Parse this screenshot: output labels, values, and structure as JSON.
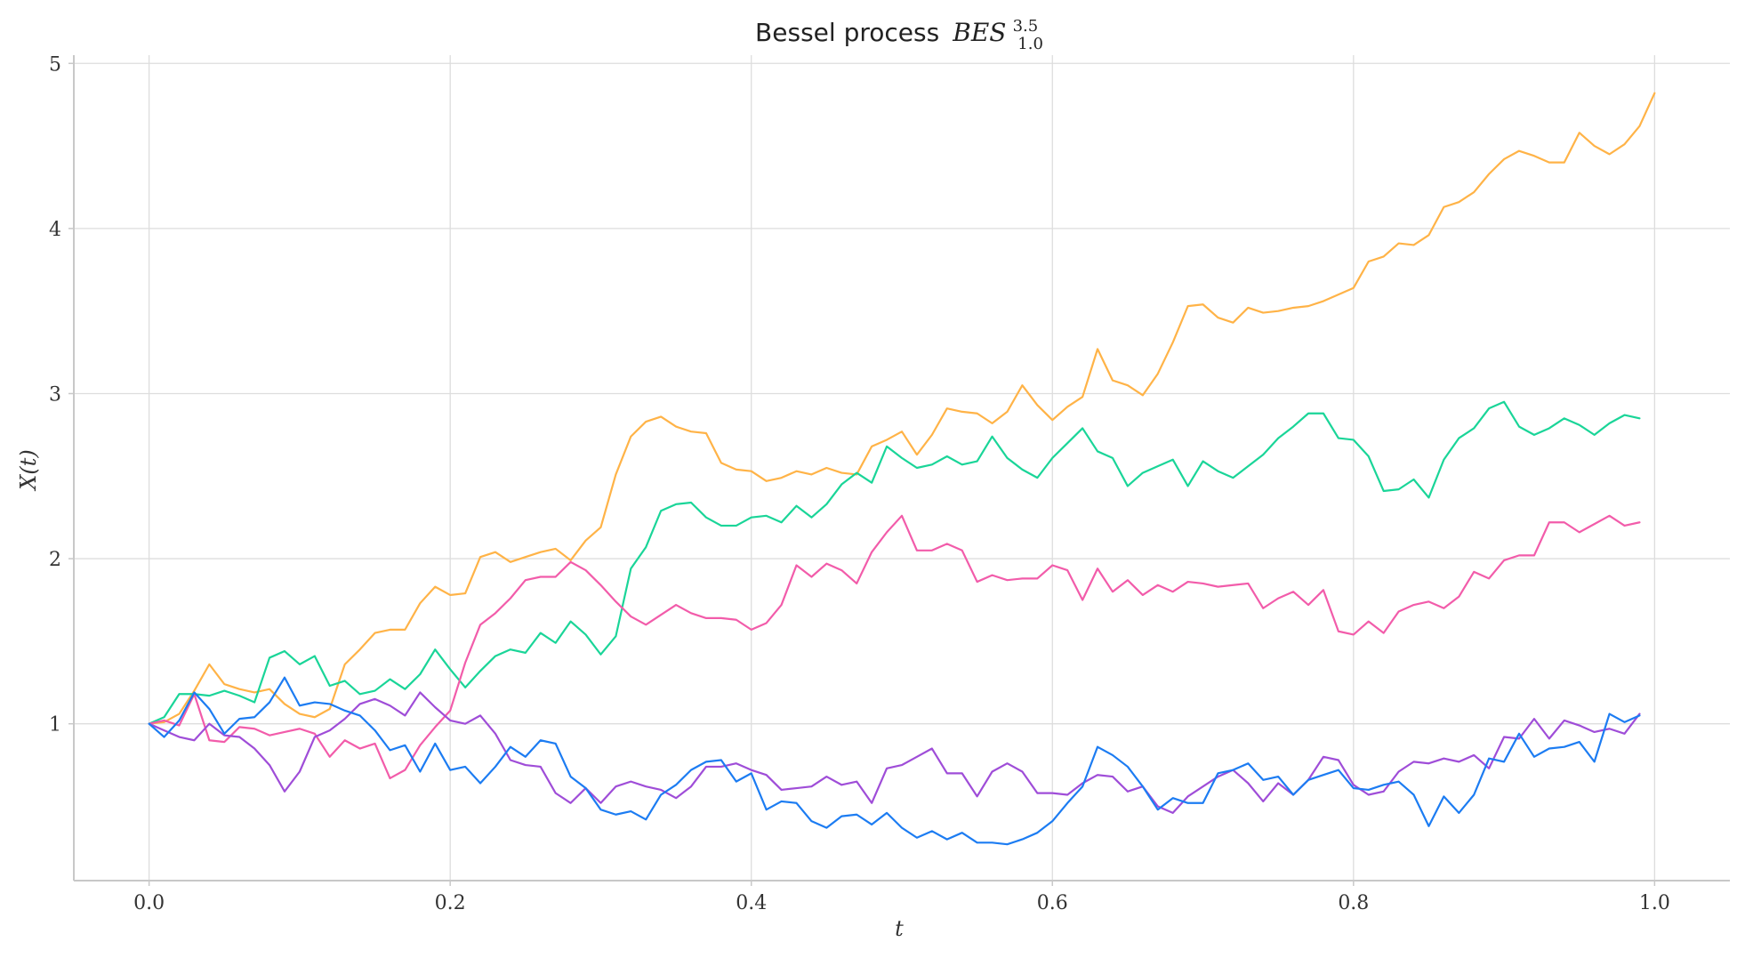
{
  "chart_data": {
    "type": "line",
    "title": {
      "prefix": "Bessel process",
      "math": "BES",
      "superscript": "3.5",
      "subscript": "1.0"
    },
    "xlabel": "t",
    "ylabel": "X(t)",
    "xlim": [
      -0.05,
      1.05
    ],
    "ylim": [
      0.05,
      5.05
    ],
    "xticks": [
      0.0,
      0.2,
      0.4,
      0.6,
      0.8,
      1.0
    ],
    "xtick_labels": [
      "0.0",
      "0.2",
      "0.4",
      "0.6",
      "0.8",
      "1.0"
    ],
    "yticks": [
      1,
      2,
      3,
      4,
      5
    ],
    "ytick_labels": [
      "1",
      "2",
      "3",
      "4",
      "5"
    ],
    "grid": true,
    "legend": "none",
    "x_start": 0.0,
    "x_step": 0.01,
    "series": [
      {
        "color": "#ffb347",
        "values": [
          1.0,
          1.01,
          1.06,
          1.2,
          1.36,
          1.24,
          1.21,
          1.19,
          1.21,
          1.12,
          1.06,
          1.04,
          1.09,
          1.36,
          1.45,
          1.55,
          1.57,
          1.57,
          1.73,
          1.83,
          1.78,
          1.79,
          2.01,
          2.04,
          1.98,
          2.01,
          2.04,
          2.06,
          1.99,
          2.11,
          2.19,
          2.51,
          2.74,
          2.83,
          2.86,
          2.8,
          2.77,
          2.76,
          2.58,
          2.54,
          2.53,
          2.47,
          2.49,
          2.53,
          2.51,
          2.55,
          2.52,
          2.51,
          2.68,
          2.72,
          2.77,
          2.63,
          2.75,
          2.91,
          2.89,
          2.88,
          2.82,
          2.89,
          3.05,
          2.93,
          2.84,
          2.92,
          2.98,
          3.27,
          3.08,
          3.05,
          2.99,
          3.12,
          3.31,
          3.53,
          3.54,
          3.46,
          3.43,
          3.52,
          3.49,
          3.5,
          3.52,
          3.53,
          3.56,
          3.6,
          3.64,
          3.8,
          3.83,
          3.91,
          3.9,
          3.96,
          4.13,
          4.16,
          4.22,
          4.33,
          4.42,
          4.47,
          4.44,
          4.4,
          4.4,
          4.58,
          4.5,
          4.45,
          4.51,
          4.62,
          4.82
        ]
      },
      {
        "color": "#1ad598",
        "values": [
          1.0,
          1.04,
          1.18,
          1.18,
          1.17,
          1.2,
          1.17,
          1.13,
          1.4,
          1.44,
          1.36,
          1.41,
          1.23,
          1.26,
          1.18,
          1.2,
          1.27,
          1.21,
          1.3,
          1.45,
          1.33,
          1.22,
          1.32,
          1.41,
          1.45,
          1.43,
          1.55,
          1.49,
          1.62,
          1.54,
          1.42,
          1.53,
          1.94,
          2.07,
          2.29,
          2.33,
          2.34,
          2.25,
          2.2,
          2.2,
          2.25,
          2.26,
          2.22,
          2.32,
          2.25,
          2.33,
          2.45,
          2.52,
          2.46,
          2.68,
          2.61,
          2.55,
          2.57,
          2.62,
          2.57,
          2.59,
          2.74,
          2.61,
          2.54,
          2.49,
          2.61,
          2.7,
          2.79,
          2.65,
          2.61,
          2.44,
          2.52,
          2.56,
          2.6,
          2.44,
          2.59,
          2.53,
          2.49,
          2.56,
          2.63,
          2.73,
          2.8,
          2.88,
          2.88,
          2.73,
          2.72,
          2.62,
          2.41,
          2.42,
          2.48,
          2.37,
          2.6,
          2.73,
          2.79,
          2.91,
          2.95,
          2.8,
          2.75,
          2.79,
          2.85,
          2.81,
          2.75,
          2.82,
          2.87,
          2.85
        ]
      },
      {
        "color": "#f25caa",
        "values": [
          1.0,
          1.02,
          0.99,
          1.18,
          0.9,
          0.89,
          0.98,
          0.97,
          0.93,
          0.95,
          0.97,
          0.94,
          0.8,
          0.9,
          0.85,
          0.88,
          0.67,
          0.72,
          0.87,
          0.98,
          1.08,
          1.37,
          1.6,
          1.67,
          1.76,
          1.87,
          1.89,
          1.89,
          1.98,
          1.93,
          1.84,
          1.74,
          1.65,
          1.6,
          1.66,
          1.72,
          1.67,
          1.64,
          1.64,
          1.63,
          1.57,
          1.61,
          1.72,
          1.96,
          1.89,
          1.97,
          1.93,
          1.85,
          2.04,
          2.16,
          2.26,
          2.05,
          2.05,
          2.09,
          2.05,
          1.86,
          1.9,
          1.87,
          1.88,
          1.88,
          1.96,
          1.93,
          1.75,
          1.94,
          1.8,
          1.87,
          1.78,
          1.84,
          1.8,
          1.86,
          1.85,
          1.83,
          1.84,
          1.85,
          1.7,
          1.76,
          1.8,
          1.72,
          1.81,
          1.56,
          1.54,
          1.62,
          1.55,
          1.68,
          1.72,
          1.74,
          1.7,
          1.77,
          1.92,
          1.88,
          1.99,
          2.02,
          2.02,
          2.22,
          2.22,
          2.16,
          2.21,
          2.26,
          2.2,
          2.22
        ]
      },
      {
        "color": "#9f4dd8",
        "values": [
          1.0,
          0.96,
          0.92,
          0.9,
          1.0,
          0.93,
          0.92,
          0.85,
          0.75,
          0.59,
          0.71,
          0.92,
          0.96,
          1.03,
          1.12,
          1.15,
          1.11,
          1.05,
          1.19,
          1.1,
          1.02,
          1.0,
          1.05,
          0.94,
          0.78,
          0.75,
          0.74,
          0.58,
          0.52,
          0.61,
          0.52,
          0.62,
          0.65,
          0.62,
          0.6,
          0.55,
          0.62,
          0.74,
          0.74,
          0.76,
          0.72,
          0.69,
          0.6,
          0.61,
          0.62,
          0.68,
          0.63,
          0.65,
          0.52,
          0.73,
          0.75,
          0.8,
          0.85,
          0.7,
          0.7,
          0.56,
          0.71,
          0.76,
          0.71,
          0.58,
          0.58,
          0.57,
          0.64,
          0.69,
          0.68,
          0.59,
          0.62,
          0.5,
          0.46,
          0.56,
          0.62,
          0.68,
          0.72,
          0.64,
          0.53,
          0.64,
          0.57,
          0.66,
          0.8,
          0.78,
          0.63,
          0.57,
          0.59,
          0.71,
          0.77,
          0.76,
          0.79,
          0.77,
          0.81,
          0.73,
          0.92,
          0.91,
          1.03,
          0.91,
          1.02,
          0.99,
          0.95,
          0.97,
          0.94,
          1.06
        ]
      },
      {
        "color": "#1c7cf2",
        "values": [
          1.0,
          0.92,
          1.02,
          1.19,
          1.09,
          0.94,
          1.03,
          1.04,
          1.13,
          1.28,
          1.11,
          1.13,
          1.12,
          1.08,
          1.05,
          0.96,
          0.84,
          0.87,
          0.71,
          0.88,
          0.72,
          0.74,
          0.64,
          0.74,
          0.86,
          0.8,
          0.9,
          0.88,
          0.68,
          0.61,
          0.48,
          0.45,
          0.47,
          0.42,
          0.57,
          0.63,
          0.72,
          0.77,
          0.78,
          0.65,
          0.7,
          0.48,
          0.53,
          0.52,
          0.41,
          0.37,
          0.44,
          0.45,
          0.39,
          0.46,
          0.37,
          0.31,
          0.35,
          0.3,
          0.34,
          0.28,
          0.28,
          0.27,
          0.3,
          0.34,
          0.41,
          0.52,
          0.62,
          0.86,
          0.81,
          0.74,
          0.62,
          0.48,
          0.55,
          0.52,
          0.52,
          0.7,
          0.72,
          0.76,
          0.66,
          0.68,
          0.57,
          0.66,
          0.69,
          0.72,
          0.61,
          0.6,
          0.63,
          0.65,
          0.57,
          0.38,
          0.56,
          0.46,
          0.57,
          0.79,
          0.77,
          0.94,
          0.8,
          0.85,
          0.86,
          0.89,
          0.77,
          1.06,
          1.01,
          1.05
        ]
      }
    ]
  }
}
